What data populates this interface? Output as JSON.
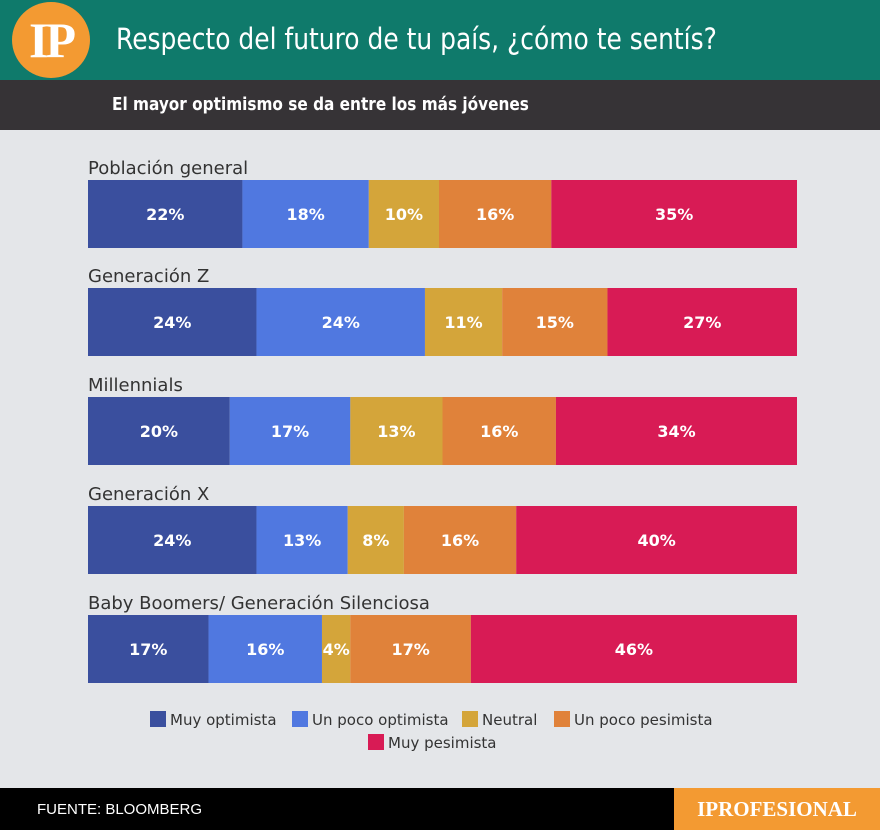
{
  "header": {
    "logo": "IP",
    "title": "Respecto del futuro de tu país, ¿cómo te sentís?",
    "subtitle": "El mayor optimismo se da entre los más jóvenes"
  },
  "footer": {
    "source": "FUENTE: BLOOMBERG",
    "brand": "IPROFESIONAL"
  },
  "chart_data": {
    "type": "bar",
    "orientation": "horizontal",
    "stacked": true,
    "unit": "%",
    "categories": [
      "Población general",
      "Generación Z",
      "Millennials",
      "Generación X",
      "Baby Boomers/ Generación Silenciosa"
    ],
    "series": [
      {
        "name": "Muy optimista",
        "color": "#3a4f9e",
        "values": [
          22,
          24,
          20,
          24,
          17
        ]
      },
      {
        "name": "Un poco optimista",
        "color": "#5078e0",
        "values": [
          18,
          24,
          17,
          13,
          16
        ]
      },
      {
        "name": "Neutral",
        "color": "#d4a53a",
        "values": [
          10,
          11,
          13,
          8,
          4
        ]
      },
      {
        "name": "Un poco pesimista",
        "color": "#e0823a",
        "values": [
          16,
          15,
          16,
          16,
          17
        ]
      },
      {
        "name": "Muy pesimista",
        "color": "#d81b55",
        "values": [
          35,
          27,
          34,
          40,
          46
        ]
      }
    ],
    "legend": "bottom",
    "grid": false
  }
}
